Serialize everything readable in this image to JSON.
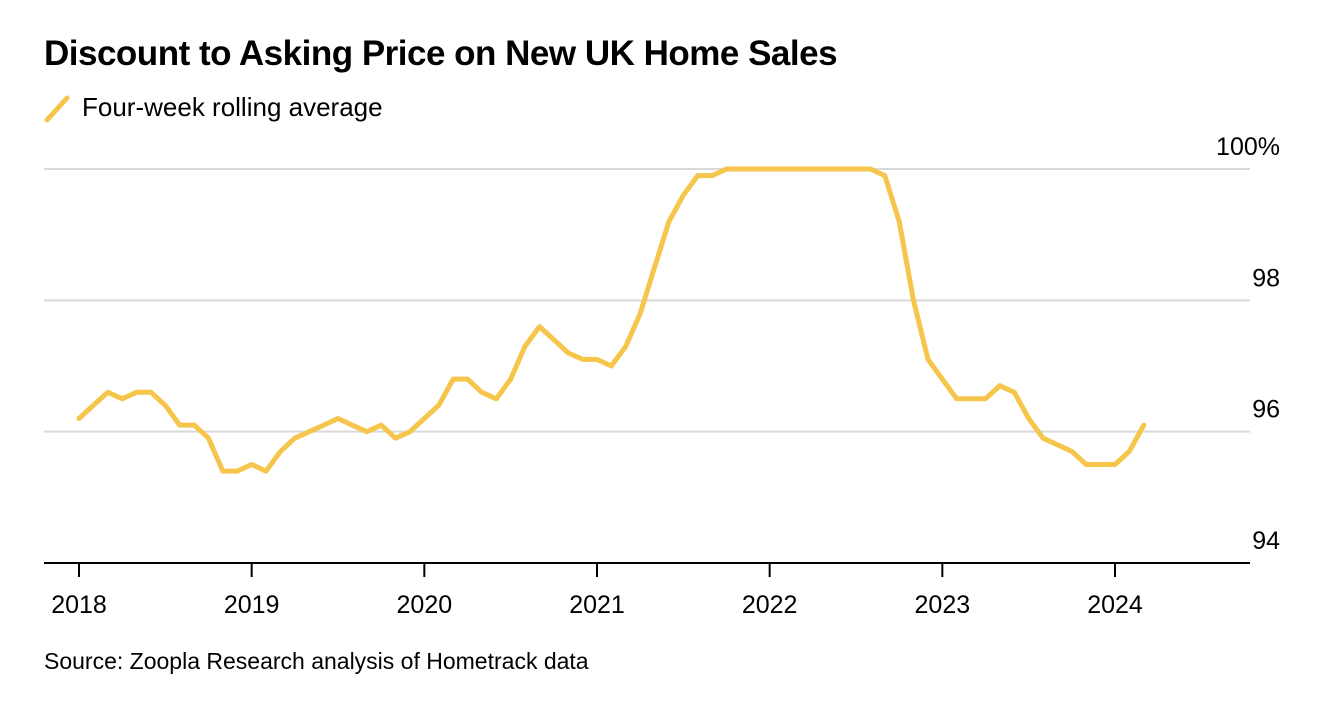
{
  "title": "Discount to Asking Price on New UK Home Sales",
  "legend": {
    "label": "Four-week rolling average"
  },
  "source": "Source: Zoopla Research analysis of Hometrack data",
  "colors": {
    "line": "#f5c54c",
    "grid": "#d9d9d9",
    "axis": "#000000"
  },
  "chart_data": {
    "type": "line",
    "title": "Discount to Asking Price on New UK Home Sales",
    "xlabel": "",
    "ylabel": "",
    "xlim": [
      2018,
      2024.8
    ],
    "ylim": [
      94,
      100
    ],
    "grid": true,
    "legend_position": "top-left",
    "x_ticks": [
      2018,
      2019,
      2020,
      2021,
      2022,
      2023,
      2024
    ],
    "x_tick_labels": [
      "2018",
      "2019",
      "2020",
      "2021",
      "2022",
      "2023",
      "2024"
    ],
    "y_ticks": [
      94,
      96,
      98,
      100
    ],
    "y_tick_labels": [
      "94",
      "96",
      "98",
      "100%"
    ],
    "series": [
      {
        "name": "Four-week rolling average",
        "x": [
          2018.0,
          2018.083,
          2018.167,
          2018.25,
          2018.333,
          2018.417,
          2018.5,
          2018.583,
          2018.667,
          2018.75,
          2018.833,
          2018.917,
          2019.0,
          2019.083,
          2019.167,
          2019.25,
          2019.333,
          2019.417,
          2019.5,
          2019.583,
          2019.667,
          2019.75,
          2019.833,
          2019.917,
          2020.0,
          2020.083,
          2020.167,
          2020.25,
          2020.333,
          2020.417,
          2020.5,
          2020.583,
          2020.667,
          2020.75,
          2020.833,
          2020.917,
          2021.0,
          2021.083,
          2021.167,
          2021.25,
          2021.333,
          2021.417,
          2021.5,
          2021.583,
          2021.667,
          2021.75,
          2021.833,
          2021.917,
          2022.0,
          2022.083,
          2022.167,
          2022.25,
          2022.333,
          2022.417,
          2022.5,
          2022.583,
          2022.667,
          2022.75,
          2022.833,
          2022.917,
          2023.0,
          2023.083,
          2023.167,
          2023.25,
          2023.333,
          2023.417,
          2023.5,
          2023.583,
          2023.667,
          2023.75,
          2023.833,
          2023.917,
          2024.0,
          2024.083,
          2024.167
        ],
        "values": [
          96.2,
          96.4,
          96.6,
          96.5,
          96.6,
          96.6,
          96.4,
          96.1,
          96.1,
          95.9,
          95.4,
          95.4,
          95.5,
          95.4,
          95.7,
          95.9,
          96.0,
          96.1,
          96.2,
          96.1,
          96.0,
          96.1,
          95.9,
          96.0,
          96.2,
          96.4,
          96.8,
          96.8,
          96.6,
          96.5,
          96.8,
          97.3,
          97.6,
          97.4,
          97.2,
          97.1,
          97.1,
          97.0,
          97.3,
          97.8,
          98.5,
          99.2,
          99.6,
          99.9,
          99.9,
          100.0,
          100.0,
          100.0,
          100.0,
          100.0,
          100.0,
          100.0,
          100.0,
          100.0,
          100.0,
          100.0,
          99.9,
          99.2,
          98.0,
          97.1,
          96.8,
          96.5,
          96.5,
          96.5,
          96.7,
          96.6,
          96.2,
          95.9,
          95.8,
          95.7,
          95.5,
          95.5,
          95.5,
          95.7,
          96.1
        ]
      }
    ]
  }
}
